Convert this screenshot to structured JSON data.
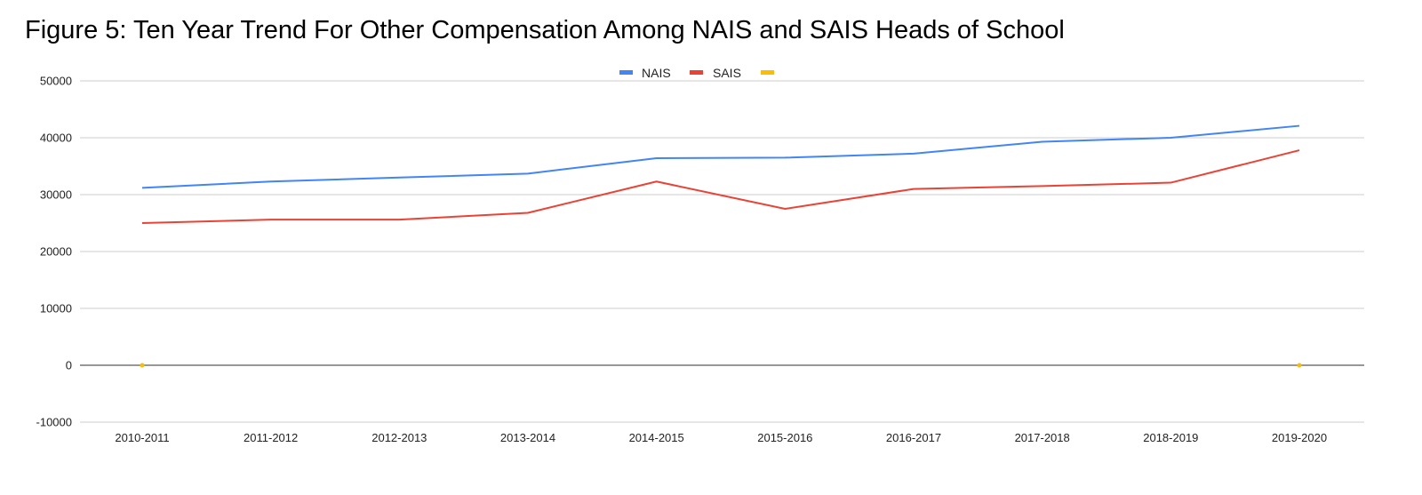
{
  "chart_data": {
    "type": "line",
    "title": "Figure 5: Ten Year Trend For Other Compensation Among NAIS and SAIS Heads of School",
    "categories": [
      "2010-2011",
      "2011-2012",
      "2012-2013",
      "2013-2014",
      "2014-2015",
      "2015-2016",
      "2016-2017",
      "2017-2018",
      "2018-2019",
      "2019-2020"
    ],
    "series": [
      {
        "name": "NAIS",
        "color": "#4285f4",
        "values": [
          31200,
          32300,
          33000,
          33700,
          36400,
          36500,
          37200,
          39300,
          40000,
          42100
        ]
      },
      {
        "name": "SAIS",
        "color": "#ea4335",
        "values": [
          25000,
          25600,
          25600,
          26800,
          32300,
          27500,
          31000,
          31500,
          32100,
          37800
        ]
      },
      {
        "name": "",
        "color": "#fbbc04",
        "values": [
          0,
          null,
          null,
          null,
          null,
          null,
          null,
          null,
          null,
          0
        ]
      }
    ],
    "yticks": [
      -10000,
      0,
      10000,
      20000,
      30000,
      40000,
      50000
    ],
    "ylim": [
      -10000,
      50000
    ],
    "grid": true,
    "legend_position": "top-center"
  }
}
